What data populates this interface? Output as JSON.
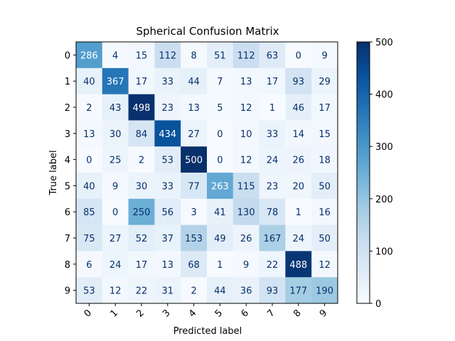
{
  "chart_data": {
    "type": "heatmap",
    "title": "Spherical Confusion Matrix",
    "xlabel": "Predicted label",
    "ylabel": "True label",
    "x_categories": [
      "0",
      "1",
      "2",
      "3",
      "4",
      "5",
      "6",
      "7",
      "8",
      "9"
    ],
    "y_categories": [
      "0",
      "1",
      "2",
      "3",
      "4",
      "5",
      "6",
      "7",
      "8",
      "9"
    ],
    "values": [
      [
        286,
        4,
        15,
        112,
        8,
        51,
        112,
        63,
        0,
        9
      ],
      [
        40,
        367,
        17,
        33,
        44,
        7,
        13,
        17,
        93,
        29
      ],
      [
        2,
        43,
        498,
        23,
        13,
        5,
        12,
        1,
        46,
        17
      ],
      [
        13,
        30,
        84,
        434,
        27,
        0,
        10,
        33,
        14,
        15
      ],
      [
        0,
        25,
        2,
        53,
        500,
        0,
        12,
        24,
        26,
        18
      ],
      [
        40,
        9,
        30,
        33,
        77,
        263,
        115,
        23,
        20,
        50
      ],
      [
        85,
        0,
        250,
        56,
        3,
        41,
        130,
        78,
        1,
        16
      ],
      [
        75,
        27,
        52,
        37,
        153,
        49,
        26,
        167,
        24,
        50
      ],
      [
        6,
        24,
        17,
        13,
        68,
        1,
        9,
        22,
        488,
        12
      ],
      [
        53,
        12,
        22,
        31,
        2,
        44,
        36,
        93,
        177,
        190
      ]
    ],
    "colormap": "Blues",
    "vmin": 0,
    "vmax": 500,
    "colorbar_ticks": [
      0,
      100,
      200,
      300,
      400,
      500
    ]
  }
}
